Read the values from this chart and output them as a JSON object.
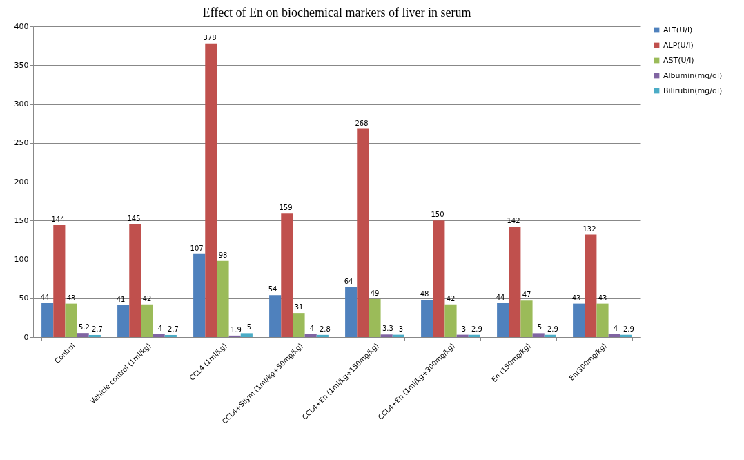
{
  "chart_data": {
    "type": "bar",
    "title": "Effect of En on biochemical markers of liver in serum",
    "categories": [
      "Control",
      "Vehicle control (1ml/kg)",
      "CCL4 (1ml/kg)",
      "CCL4+Silym (1ml/kg+50mg/kg)",
      "CCL4+En (1ml/kg+150mg/kg)",
      "CCL4+En (1ml/kg+300mg/kg)",
      "En (150mg/kg)",
      "En(300mg/kg)"
    ],
    "series": [
      {
        "name": "ALT(U/l)",
        "color": "#4f81bd",
        "values": [
          44,
          41,
          107,
          54,
          64,
          48,
          44,
          43
        ]
      },
      {
        "name": "ALP(U/l)",
        "color": "#c0504d",
        "values": [
          144,
          145,
          378,
          159,
          268,
          150,
          142,
          132
        ]
      },
      {
        "name": "AST(U/l)",
        "color": "#9bbb59",
        "values": [
          43,
          42,
          98,
          31,
          49,
          42,
          47,
          43
        ]
      },
      {
        "name": "Albumin(mg/dl)",
        "color": "#8064a2",
        "values": [
          5.2,
          4,
          1.9,
          4,
          3.3,
          3,
          5,
          4
        ]
      },
      {
        "name": "Bilirubin(mg/dl)",
        "color": "#4bacc6",
        "values": [
          2.7,
          2.7,
          5,
          2.8,
          3,
          2.9,
          2.9,
          2.9
        ]
      }
    ],
    "ylim": [
      0,
      400
    ],
    "yticks": [
      0,
      50,
      100,
      150,
      200,
      250,
      300,
      350,
      400
    ],
    "grid": "y",
    "legend": "right",
    "data_labels": true
  }
}
